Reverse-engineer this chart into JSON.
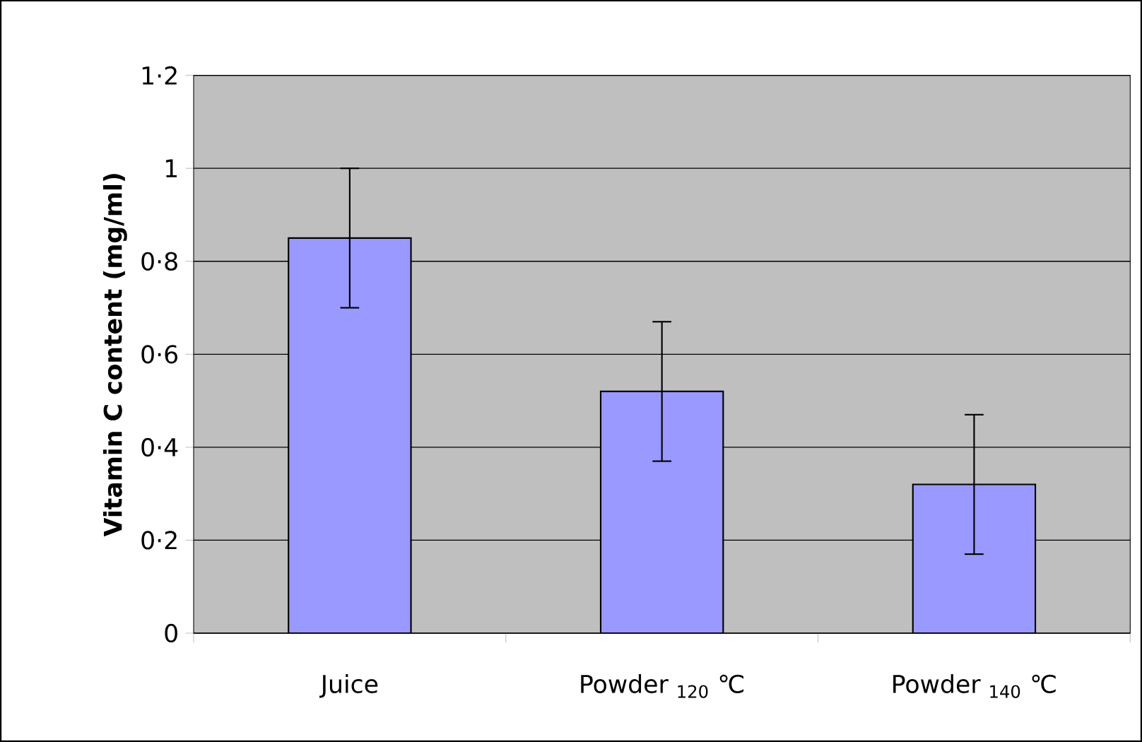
{
  "chart_data": {
    "type": "bar",
    "ylabel": "Vitamin C content (mg/ml)",
    "categories": [
      "Juice",
      "Powder $_{120}$ ℃",
      "Powder $_{140}$ ℃"
    ],
    "values": [
      0.85,
      0.52,
      0.32
    ],
    "errors": [
      0.15,
      0.15,
      0.15
    ],
    "color": "#9999ff",
    "ylim": [
      0,
      1.2
    ],
    "yticks": [
      0,
      {
        "value": 0.2,
        "label": "0·2"
      },
      {
        "value": 0.4,
        "label": "0·4"
      },
      {
        "value": 0.6,
        "label": "0·6"
      },
      {
        "value": 0.8,
        "label": "0·8"
      },
      1,
      {
        "value": 1.2,
        "label": "1·2"
      }
    ],
    "grid": "y"
  }
}
